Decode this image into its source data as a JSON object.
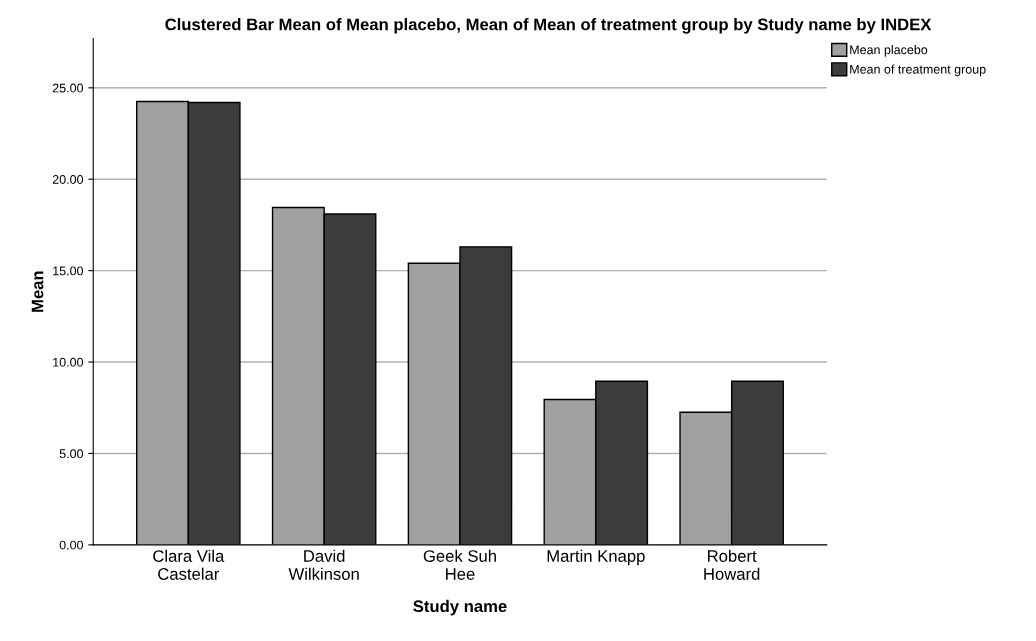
{
  "chart_data": {
    "type": "bar",
    "title": "Clustered Bar Mean of Mean placebo, Mean of Mean of treatment group by Study name by INDEX",
    "xlabel": "Study name",
    "ylabel": "Mean",
    "categories": [
      "Clara Vila\nCastelar",
      "David\nWilkinson",
      "Geek Suh\nHee",
      "Martin Knapp",
      "Robert\nHoward"
    ],
    "series": [
      {
        "name": "Mean placebo",
        "color": "#a0a0a0",
        "values": [
          24.25,
          18.45,
          15.4,
          7.95,
          7.25
        ]
      },
      {
        "name": "Mean of treatment group",
        "color": "#3c3c3c",
        "values": [
          24.2,
          18.1,
          16.3,
          8.95,
          8.95
        ]
      }
    ],
    "ylim": [
      0,
      27.7
    ],
    "yticks": [
      {
        "value": 0,
        "label": "0.00"
      },
      {
        "value": 5,
        "label": "5.00"
      },
      {
        "value": 10,
        "label": "10.00"
      },
      {
        "value": 15,
        "label": "15.00"
      },
      {
        "value": 20,
        "label": "20.00"
      },
      {
        "value": 25,
        "label": "25.00"
      }
    ],
    "grid": "y",
    "legend": "top right"
  }
}
